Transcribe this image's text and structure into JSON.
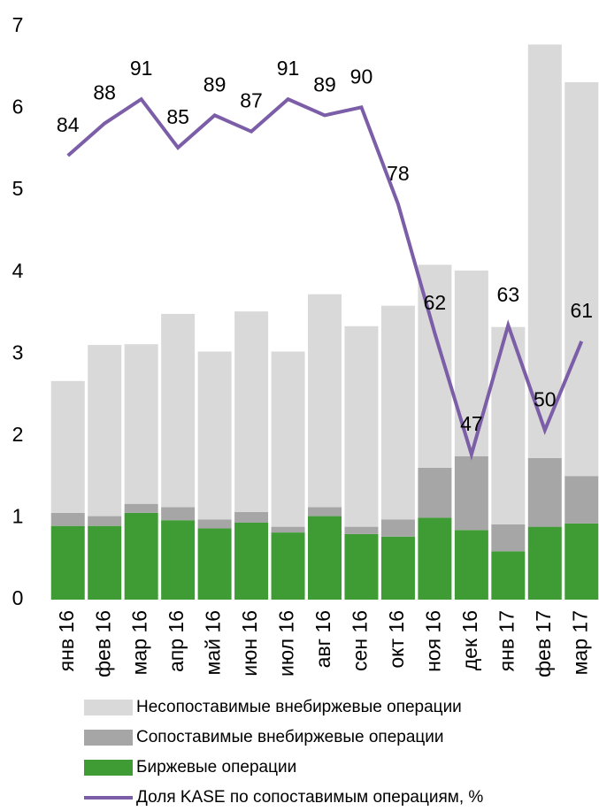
{
  "chart_data": {
    "type": "bar",
    "stacked": true,
    "categories": [
      "янв 16",
      "фев 16",
      "мар 16",
      "апр 16",
      "май 16",
      "июн 16",
      "июл 16",
      "авг 16",
      "сен 16",
      "окт 16",
      "ноя 16",
      "дек 16",
      "янв 17",
      "фев 17",
      "мар 17"
    ],
    "series": [
      {
        "name": "Биржевые операции",
        "color": "#3f9c35",
        "values": [
          0.9,
          0.9,
          1.06,
          0.97,
          0.87,
          0.94,
          0.82,
          1.02,
          0.8,
          0.77,
          1.0,
          0.85,
          0.59,
          0.89,
          0.93
        ]
      },
      {
        "name": "Сопоставимые внебиржевые операции",
        "color": "#a6a6a6",
        "values": [
          0.16,
          0.12,
          0.11,
          0.16,
          0.11,
          0.13,
          0.07,
          0.11,
          0.09,
          0.21,
          0.61,
          0.9,
          0.33,
          0.84,
          0.58
        ]
      },
      {
        "name": "Несопоставимые внебиржевые операции",
        "color": "#d9d9d9",
        "values": [
          1.61,
          2.09,
          1.95,
          2.36,
          2.05,
          2.45,
          2.14,
          2.6,
          2.45,
          2.61,
          2.48,
          2.27,
          2.41,
          5.05,
          4.81
        ]
      },
      {
        "name": "Доля KASE по сопоставимым операциям, %",
        "color": "#7b5ea7",
        "type": "line",
        "axis": "y2",
        "values": [
          84,
          88,
          91,
          85,
          89,
          87,
          91,
          89,
          90,
          78,
          62,
          47,
          63,
          50,
          61
        ]
      }
    ],
    "ylim": [
      0,
      7
    ],
    "yticks": [
      0,
      1,
      2,
      3,
      4,
      5,
      6,
      7
    ],
    "y2lim": [
      29,
      100
    ],
    "grid": false
  }
}
